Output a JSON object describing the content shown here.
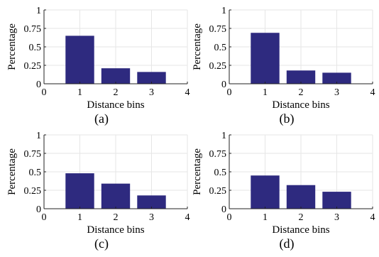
{
  "figure": {
    "background": "#ffffff",
    "bar_color": "#2e2a7f",
    "grid_color": "#e6e6e6",
    "axis_color": "#222222"
  },
  "chart_data": [
    {
      "type": "bar",
      "panel_label": "(a)",
      "xlabel": "Distance bins",
      "ylabel": "Percentage",
      "categories": [
        1,
        2,
        3
      ],
      "values": [
        0.65,
        0.21,
        0.16
      ],
      "xlim": [
        0,
        4
      ],
      "ylim": [
        0,
        1
      ],
      "xticks": [
        "0",
        "1",
        "2",
        "3",
        "4"
      ],
      "yticks": [
        "0",
        "0.25",
        "0.5",
        "0.75",
        "1"
      ],
      "grid": true
    },
    {
      "type": "bar",
      "panel_label": "(b)",
      "xlabel": "Distance bins",
      "ylabel": "Percentage",
      "categories": [
        1,
        2,
        3
      ],
      "values": [
        0.69,
        0.18,
        0.15
      ],
      "xlim": [
        0,
        4
      ],
      "ylim": [
        0,
        1
      ],
      "xticks": [
        "0",
        "1",
        "2",
        "3",
        "4"
      ],
      "yticks": [
        "0",
        "0.25",
        "0.5",
        "0.75",
        "1"
      ],
      "grid": true
    },
    {
      "type": "bar",
      "panel_label": "(c)",
      "xlabel": "Distance bins",
      "ylabel": "Percentage",
      "categories": [
        1,
        2,
        3
      ],
      "values": [
        0.48,
        0.34,
        0.18
      ],
      "xlim": [
        0,
        4
      ],
      "ylim": [
        0,
        1
      ],
      "xticks": [
        "0",
        "1",
        "2",
        "3",
        "4"
      ],
      "yticks": [
        "0",
        "0.25",
        "0.5",
        "0.75",
        "1"
      ],
      "grid": true
    },
    {
      "type": "bar",
      "panel_label": "(d)",
      "xlabel": "Distance bins",
      "ylabel": "Percentage",
      "categories": [
        1,
        2,
        3
      ],
      "values": [
        0.45,
        0.32,
        0.23
      ],
      "xlim": [
        0,
        4
      ],
      "ylim": [
        0,
        1
      ],
      "xticks": [
        "0",
        "1",
        "2",
        "3",
        "4"
      ],
      "yticks": [
        "0",
        "0.25",
        "0.5",
        "0.75",
        "1"
      ],
      "grid": true
    }
  ]
}
